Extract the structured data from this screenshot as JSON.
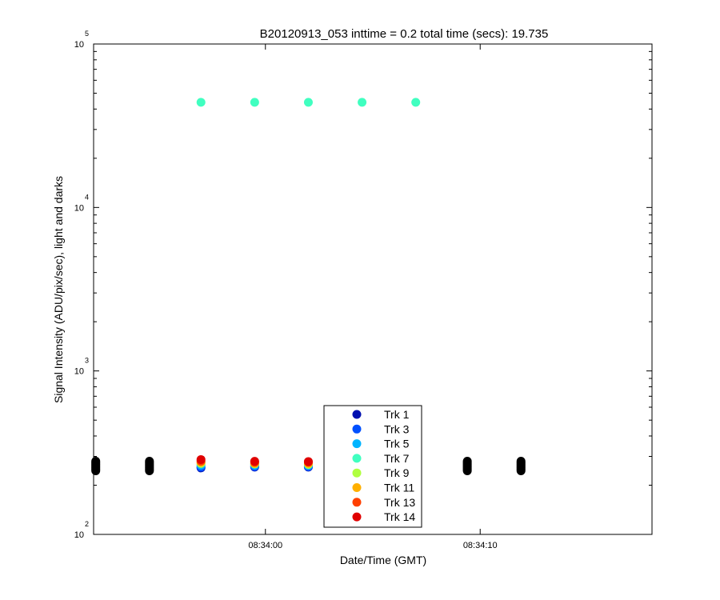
{
  "chart_data": {
    "type": "scatter",
    "title": "B20120913_053 inttime = 0.2 total time (secs): 19.735",
    "xlabel": "Date/Time (GMT)",
    "ylabel": "Signal Intensity (ADU/pix/sec), light and darks",
    "y_scale": "log",
    "ylim": [
      100,
      100000
    ],
    "xlim": [
      "08:33:52",
      "08:34:18"
    ],
    "x_ticks": [
      {
        "time": "08:34:00",
        "label": "08:34:00"
      },
      {
        "time": "08:34:10",
        "label": "08:34:10"
      }
    ],
    "y_ticks": [
      {
        "value": 100,
        "base": "10",
        "exp": "2"
      },
      {
        "value": 1000,
        "base": "10",
        "exp": "3"
      },
      {
        "value": 10000,
        "base": "10",
        "exp": "4"
      },
      {
        "value": 100000,
        "base": "10",
        "exp": "5"
      }
    ],
    "grid": false,
    "legend_position": "bottom-center",
    "light_times": [
      "08:33:57.0",
      "08:33:59.5",
      "08:34:02.0",
      "08:34:04.5",
      "08:34:07.0"
    ],
    "dark_times": [
      "08:33:52.1",
      "08:33:54.6",
      "08:34:09.4",
      "08:34:11.9"
    ],
    "dark_range": [
      245,
      285
    ],
    "series": [
      {
        "name": "Trk 1",
        "color": "#0010b0",
        "values": [
          255,
          258,
          258,
          null,
          null
        ]
      },
      {
        "name": "Trk 3",
        "color": "#0050ff",
        "values": [
          258,
          260,
          260,
          null,
          null
        ]
      },
      {
        "name": "Trk 5",
        "color": "#00b4ff",
        "values": [
          265,
          265,
          264,
          null,
          null
        ]
      },
      {
        "name": "Trk 7",
        "color": "#40ffc0",
        "values": [
          44000,
          44000,
          44000,
          44000,
          44000
        ]
      },
      {
        "name": "Trk 9",
        "color": "#b0ff40",
        "values": [
          272,
          270,
          268,
          null,
          null
        ]
      },
      {
        "name": "Trk 11",
        "color": "#ffb000",
        "values": [
          276,
          272,
          272,
          null,
          null
        ]
      },
      {
        "name": "Trk 13",
        "color": "#ff4000",
        "values": [
          281,
          276,
          276,
          null,
          null
        ]
      },
      {
        "name": "Trk 14",
        "color": "#e00000",
        "values": [
          287,
          280,
          279,
          null,
          null
        ]
      }
    ],
    "dark_color": "#000000"
  }
}
